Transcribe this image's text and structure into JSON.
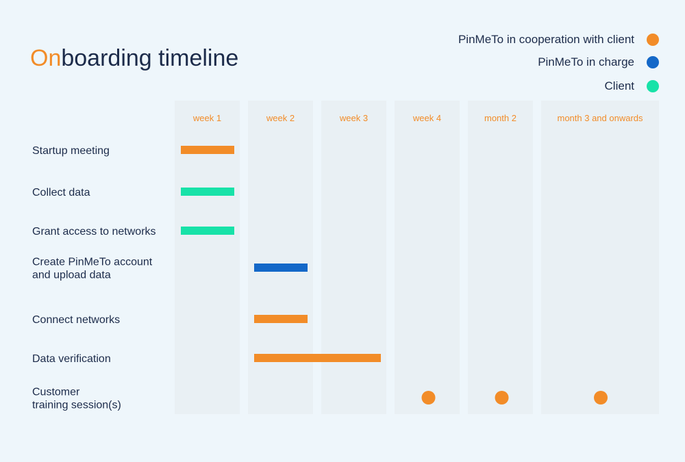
{
  "title": {
    "accent": "On",
    "rest": "boarding timeline"
  },
  "colors": {
    "cooperation": "#f28c28",
    "pinmeto": "#1468c8",
    "client": "#18e2a8",
    "column_bg": "#e9f0f4",
    "header_text": "#f28c28"
  },
  "legend": [
    {
      "label": "PinMeTo in cooperation with client",
      "color": "#f28c28"
    },
    {
      "label": "PinMeTo in charge",
      "color": "#1468c8"
    },
    {
      "label": "Client",
      "color": "#18e2a8"
    }
  ],
  "chart_data": {
    "type": "gantt",
    "periods": [
      "week 1",
      "week 2",
      "week 3",
      "week 4",
      "month 2",
      "month 3 and onwards"
    ],
    "tasks": [
      {
        "label": [
          "Startup meeting"
        ],
        "kind": "bar",
        "start": 0,
        "end": 0,
        "owner": "cooperation"
      },
      {
        "label": [
          "Collect data"
        ],
        "kind": "bar",
        "start": 0,
        "end": 0,
        "owner": "client"
      },
      {
        "label": [
          "Grant access to networks"
        ],
        "kind": "bar",
        "start": 0,
        "end": 0,
        "owner": "client"
      },
      {
        "label": [
          "Create PinMeTo account",
          "and upload data"
        ],
        "kind": "bar",
        "start": 1,
        "end": 1,
        "owner": "pinmeto"
      },
      {
        "label": [
          "Connect networks"
        ],
        "kind": "bar",
        "start": 1,
        "end": 1,
        "owner": "cooperation"
      },
      {
        "label": [
          "Data verification"
        ],
        "kind": "bar",
        "start": 1,
        "end": 2,
        "owner": "cooperation"
      },
      {
        "label": [
          "Customer",
          "training session(s)"
        ],
        "kind": "dots",
        "periods": [
          3,
          4,
          5
        ],
        "owner": "cooperation"
      }
    ]
  }
}
